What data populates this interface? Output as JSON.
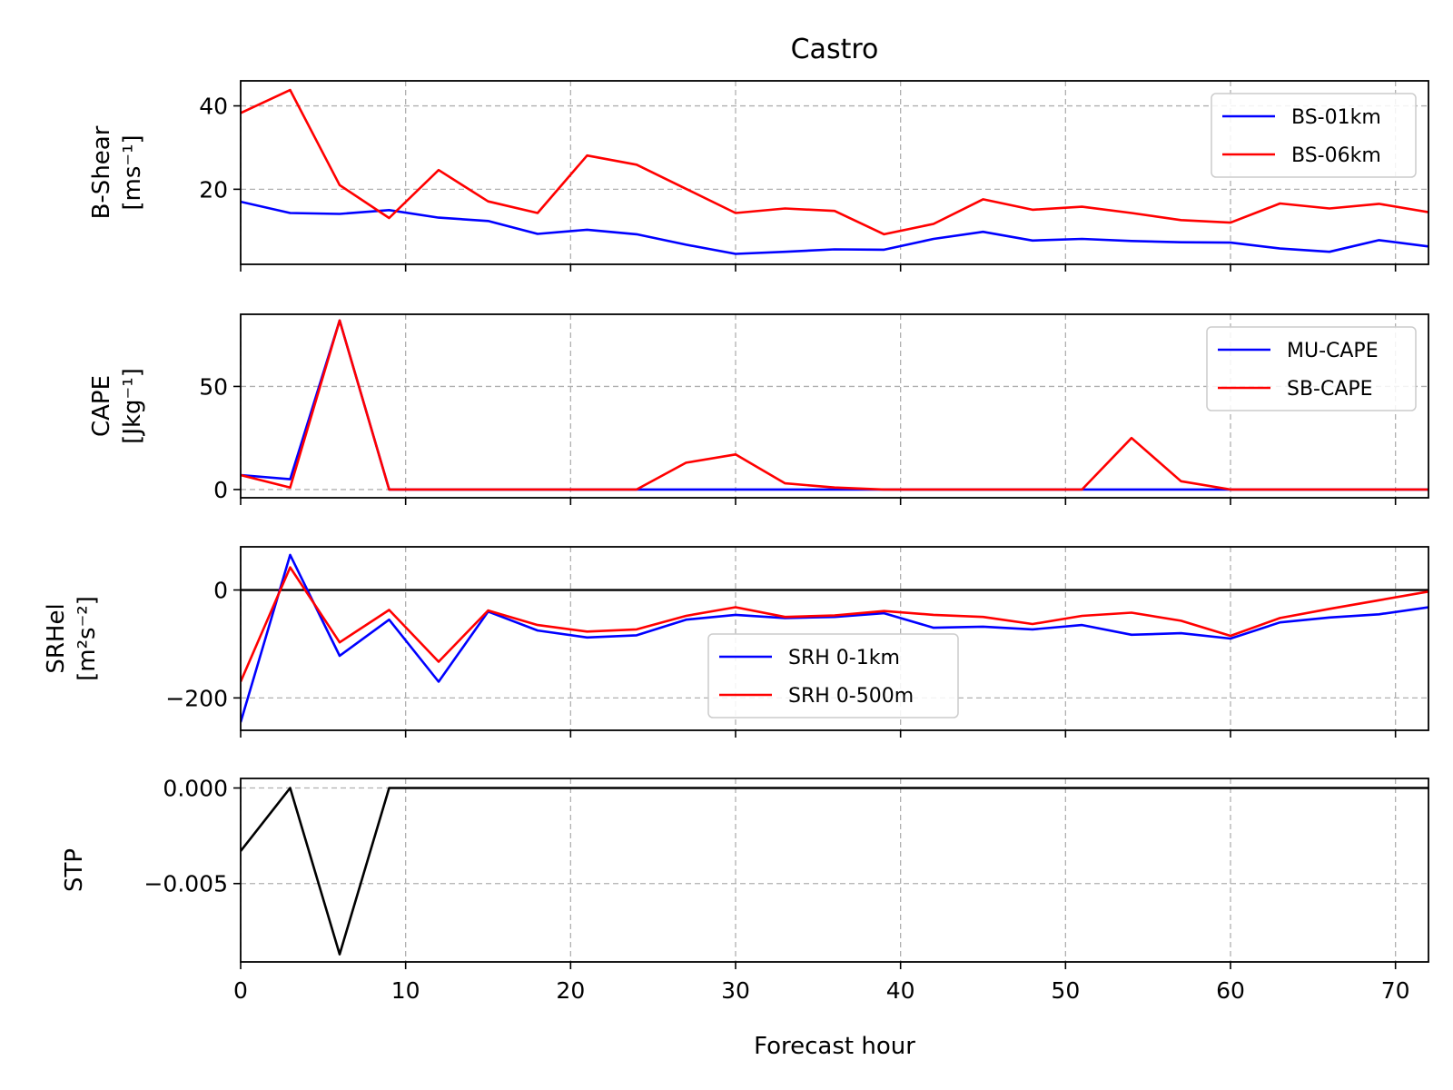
{
  "title": "Castro",
  "xlabel": "Forecast hour",
  "colors": {
    "blue": "#0000ff",
    "red": "#ff0000",
    "black": "#000000"
  },
  "chart_data": [
    {
      "type": "line",
      "ylabel": [
        "B-Shear",
        "[ms⁻¹]"
      ],
      "xlim": [
        0,
        72
      ],
      "ylim": [
        2,
        46
      ],
      "yticks": [
        20,
        40
      ],
      "ytick_labels": [
        "20",
        "40"
      ],
      "xticks": [
        0,
        10,
        20,
        30,
        40,
        50,
        60,
        70
      ],
      "legend_loc": "upper right",
      "series": [
        {
          "name": "BS-01km",
          "color": "#0000ff",
          "x": [
            0,
            3,
            6,
            9,
            12,
            15,
            18,
            21,
            24,
            27,
            30,
            33,
            36,
            39,
            42,
            45,
            48,
            51,
            54,
            57,
            60,
            63,
            66,
            69,
            72
          ],
          "y": [
            17,
            14.3,
            14.1,
            15,
            13.2,
            12.4,
            9.3,
            10.3,
            9.2,
            6.7,
            4.5,
            5,
            5.6,
            5.5,
            8.1,
            9.8,
            7.7,
            8.1,
            7.6,
            7.3,
            7.2,
            5.8,
            5,
            7.8,
            6.3
          ]
        },
        {
          "name": "BS-06km",
          "color": "#ff0000",
          "x": [
            0,
            3,
            6,
            9,
            12,
            15,
            18,
            21,
            24,
            27,
            30,
            33,
            36,
            39,
            42,
            45,
            48,
            51,
            54,
            57,
            60,
            63,
            66,
            69,
            72
          ],
          "y": [
            38.3,
            43.8,
            21,
            13.1,
            24.6,
            17.1,
            14.3,
            28.1,
            25.9,
            20.1,
            14.3,
            15.4,
            14.8,
            9.2,
            11.7,
            17.6,
            15.1,
            15.8,
            14.3,
            12.6,
            12,
            16.6,
            15.4,
            16.5,
            14.5
          ]
        }
      ]
    },
    {
      "type": "line",
      "ylabel": [
        "CAPE",
        "[Jkg⁻¹]"
      ],
      "xlim": [
        0,
        72
      ],
      "ylim": [
        -4,
        85
      ],
      "yticks": [
        0,
        50
      ],
      "ytick_labels": [
        "0",
        "50"
      ],
      "xticks": [
        0,
        10,
        20,
        30,
        40,
        50,
        60,
        70
      ],
      "legend_loc": "upper right",
      "series": [
        {
          "name": "MU-CAPE",
          "color": "#0000ff",
          "x": [
            0,
            3,
            6,
            9,
            12,
            15,
            18,
            21,
            24,
            27,
            30,
            33,
            36,
            39,
            42,
            45,
            48,
            51,
            54,
            57,
            60,
            63,
            66,
            69,
            72
          ],
          "y": [
            7,
            5,
            82,
            0,
            0,
            0,
            0,
            0,
            0,
            0,
            0,
            0,
            0,
            0,
            0,
            0,
            0,
            0,
            0,
            0,
            0,
            0,
            0,
            0,
            0
          ]
        },
        {
          "name": "SB-CAPE",
          "color": "#ff0000",
          "x": [
            0,
            3,
            6,
            9,
            12,
            15,
            18,
            21,
            24,
            27,
            30,
            33,
            36,
            39,
            42,
            45,
            48,
            51,
            54,
            57,
            60,
            63,
            66,
            69,
            72
          ],
          "y": [
            7,
            1,
            82,
            0,
            0,
            0,
            0,
            0,
            0,
            13,
            17,
            3,
            1,
            0,
            0,
            0,
            0,
            0,
            25,
            4,
            0,
            0,
            0,
            0,
            0
          ]
        }
      ]
    },
    {
      "type": "line",
      "ylabel": [
        "SRHel",
        "[m²s⁻²]"
      ],
      "xlim": [
        0,
        72
      ],
      "ylim": [
        -260,
        80
      ],
      "yticks": [
        -200,
        0
      ],
      "ytick_labels": [
        "−200",
        "0"
      ],
      "xticks": [
        0,
        10,
        20,
        30,
        40,
        50,
        60,
        70
      ],
      "hline": 0,
      "legend_loc": "lower center",
      "series": [
        {
          "name": "SRH 0-1km",
          "color": "#0000ff",
          "x": [
            0,
            3,
            6,
            9,
            12,
            15,
            18,
            21,
            24,
            27,
            30,
            33,
            36,
            39,
            42,
            45,
            48,
            51,
            54,
            57,
            60,
            63,
            66,
            69,
            72
          ],
          "y": [
            -245,
            65,
            -122,
            -55,
            -170,
            -40,
            -75,
            -88,
            -84,
            -55,
            -46,
            -52,
            -50,
            -43,
            -70,
            -68,
            -73,
            -65,
            -83,
            -80,
            -90,
            -60,
            -51,
            -45,
            -32
          ]
        },
        {
          "name": "SRH 0-500m",
          "color": "#ff0000",
          "x": [
            0,
            3,
            6,
            9,
            12,
            15,
            18,
            21,
            24,
            27,
            30,
            33,
            36,
            39,
            42,
            45,
            48,
            51,
            54,
            57,
            60,
            63,
            66,
            69,
            72
          ],
          "y": [
            -170,
            42,
            -97,
            -37,
            -133,
            -38,
            -65,
            -77,
            -73,
            -48,
            -32,
            -50,
            -47,
            -39,
            -46,
            -50,
            -63,
            -48,
            -42,
            -57,
            -85,
            -52,
            -35,
            -19,
            -3
          ]
        }
      ]
    },
    {
      "type": "line",
      "ylabel": [
        "STP"
      ],
      "xlim": [
        0,
        72
      ],
      "ylim": [
        -0.0091,
        0.0005
      ],
      "yticks": [
        -0.005,
        0
      ],
      "ytick_labels": [
        "−0.005",
        "0.000"
      ],
      "xticks": [
        0,
        10,
        20,
        30,
        40,
        50,
        60,
        70
      ],
      "xtick_labels": [
        "0",
        "10",
        "20",
        "30",
        "40",
        "50",
        "60",
        "70"
      ],
      "series": [
        {
          "color": "#000000",
          "x": [
            0,
            3,
            6,
            9,
            12,
            15,
            18,
            21,
            24,
            27,
            30,
            33,
            36,
            39,
            42,
            45,
            48,
            51,
            54,
            57,
            60,
            63,
            66,
            69,
            72
          ],
          "y": [
            -0.0033,
            0,
            -0.0087,
            0,
            0,
            0,
            0,
            0,
            0,
            0,
            0,
            0,
            0,
            0,
            0,
            0,
            0,
            0,
            0,
            0,
            0,
            0,
            0,
            0,
            0
          ]
        }
      ]
    }
  ]
}
